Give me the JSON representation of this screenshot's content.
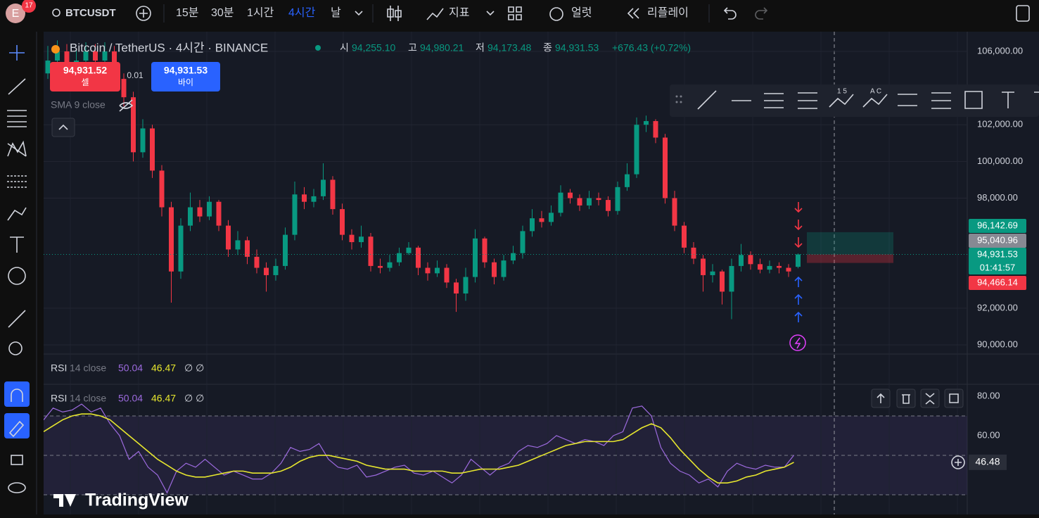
{
  "topbar": {
    "avatar": "E",
    "badge": "17",
    "symbol": "BTCUSDT",
    "intervals": [
      "15분",
      "30분",
      "1시간",
      "4시간",
      "날"
    ],
    "active_interval": 3,
    "indicators": "지표",
    "alert": "얼럿",
    "replay": "리플레이"
  },
  "legend": {
    "title": "Bitcoin / TetherUS · 4시간 · BINANCE",
    "o_label": "시",
    "o": "94,255.10",
    "h_label": "고",
    "h": "94,980.21",
    "l_label": "저",
    "l": "94,173.48",
    "c_label": "종",
    "c": "94,931.53",
    "change": "+676.43 (+0.72%)"
  },
  "trade": {
    "sell_price": "94,931.52",
    "sell": "셀",
    "qty": "0.01",
    "buy_price": "94,931.53",
    "buy": "바이"
  },
  "sma_label": "SMA 9 close",
  "drawing_toolbar": {
    "fib_label": "1 5",
    "pattern_label": "A C"
  },
  "rsi_legend": {
    "name": "RSI",
    "params": "14 close",
    "rsi": "50.04",
    "ma": "46.47",
    "extra": "∅ ∅"
  },
  "logo": "TradingView",
  "chart_data": [
    {
      "type": "candlestick",
      "up_color": "#089981",
      "down_color": "#f23645",
      "ylim": [
        89500,
        107075
      ],
      "yticks": [
        {
          "value": 106000,
          "label": "106,000.00"
        },
        {
          "value": 102000,
          "label": "102,000.00"
        },
        {
          "value": 100000,
          "label": "100,000.00"
        },
        {
          "value": 98000,
          "label": "98,000.00"
        },
        {
          "value": 92000,
          "label": "92,000.00"
        },
        {
          "value": 90000,
          "label": "90,000.00"
        }
      ],
      "open": [
        104800,
        105500,
        106000,
        105000,
        105500,
        106000,
        105500,
        106000,
        104500,
        103500,
        100500,
        101800,
        99500,
        97500,
        94000,
        96500,
        97500,
        97000,
        97800,
        96500,
        95200,
        95700,
        94800,
        94200,
        93800,
        94300,
        96000,
        98200,
        97800,
        98100,
        99000,
        97400,
        96000,
        95600,
        95900,
        94300,
        94200,
        94500,
        95000,
        95300,
        94200,
        93900,
        94200,
        93400,
        92800,
        93700,
        95800,
        94500,
        93700,
        94600,
        95000,
        96200,
        96900,
        96700,
        97200,
        98300,
        98000,
        97600,
        98000,
        97900,
        97300,
        98600,
        99300,
        102000,
        102200,
        101300,
        98000,
        96500,
        95300,
        94700,
        93800,
        94000,
        92900,
        94300,
        94900,
        94400,
        94100,
        94300,
        94200,
        94255.1
      ],
      "high": [
        106300,
        106600,
        106400,
        106100,
        106500,
        106400,
        106500,
        106300,
        104800,
        103800,
        102300,
        102000,
        99800,
        97800,
        96900,
        98300,
        97900,
        98100,
        97900,
        96800,
        96200,
        95900,
        95200,
        94500,
        94700,
        96400,
        98900,
        98600,
        98500,
        99900,
        99200,
        97700,
        96300,
        96500,
        96100,
        94700,
        94900,
        95300,
        95600,
        95400,
        94500,
        94600,
        94400,
        93600,
        94200,
        96300,
        95900,
        94700,
        94900,
        95400,
        96500,
        97400,
        97300,
        97600,
        98700,
        98500,
        98200,
        98400,
        98300,
        98100,
        98900,
        99900,
        102400,
        102500,
        102300,
        101500,
        98400,
        96700,
        95600,
        94900,
        94400,
        94100,
        94700,
        95500,
        95100,
        94700,
        94600,
        94500,
        94400,
        94980.21
      ],
      "low": [
        104500,
        105200,
        104700,
        104800,
        105200,
        105100,
        105200,
        104100,
        103000,
        100000,
        100200,
        99100,
        97000,
        92300,
        93600,
        96200,
        96700,
        96800,
        96200,
        94800,
        94900,
        94400,
        93900,
        92900,
        93500,
        94100,
        95700,
        97400,
        97500,
        97900,
        97100,
        95700,
        95200,
        95300,
        94000,
        93900,
        94000,
        94300,
        94900,
        93800,
        93500,
        93700,
        93100,
        91800,
        92400,
        93400,
        94200,
        93300,
        93500,
        94400,
        94700,
        95900,
        96400,
        96500,
        97000,
        97700,
        97300,
        97400,
        97600,
        97000,
        97100,
        98400,
        99100,
        101600,
        101000,
        97700,
        96200,
        95000,
        94400,
        92900,
        93400,
        92200,
        91400,
        94000,
        94100,
        93900,
        93900,
        93900,
        93700,
        94173.48
      ],
      "close": [
        105500,
        106000,
        105000,
        105500,
        106000,
        105500,
        106000,
        104500,
        103500,
        100500,
        101800,
        99500,
        97500,
        94000,
        96500,
        97500,
        97000,
        97800,
        96500,
        95200,
        95700,
        94800,
        94200,
        93800,
        94300,
        96000,
        98200,
        97800,
        98100,
        99000,
        97400,
        96000,
        95600,
        95900,
        94300,
        94200,
        94500,
        95000,
        95300,
        94200,
        93900,
        94200,
        93400,
        92800,
        93700,
        95800,
        94500,
        93700,
        94600,
        95000,
        96200,
        96900,
        96700,
        97200,
        98300,
        98000,
        97600,
        98000,
        97900,
        97300,
        98600,
        99300,
        102000,
        102200,
        101300,
        98000,
        96500,
        95300,
        94700,
        93800,
        94000,
        92900,
        94300,
        94900,
        94400,
        94100,
        94300,
        94200,
        94000,
        94931.53
      ],
      "price_tags": [
        {
          "value": 96142.69,
          "label": "96,142.69",
          "color": "#089981"
        },
        {
          "value": 95040.96,
          "label": "95,040.96",
          "color": "#868993"
        },
        {
          "value": 94931.53,
          "label": "94,931.53",
          "color": "#089981"
        },
        {
          "value": 94466.14,
          "label": "94,466.14",
          "color": "#f23645"
        }
      ],
      "countdown": "01:41:57"
    },
    {
      "type": "line",
      "ylim": [
        20,
        85.7
      ],
      "yticks": [
        {
          "value": 80,
          "label": "80.00"
        },
        {
          "value": 60,
          "label": "60.00"
        }
      ],
      "levels": [
        70,
        50,
        30
      ],
      "series": [
        {
          "color": "#9c6ade",
          "values": [
            68,
            74,
            72,
            73,
            76,
            72,
            74,
            66,
            60,
            48,
            52,
            44,
            40,
            31,
            42,
            46,
            44,
            48,
            44,
            40,
            42,
            40,
            38,
            38,
            41,
            46,
            54,
            52,
            53,
            56,
            48,
            44,
            43,
            45,
            39,
            40,
            42,
            44,
            45,
            41,
            40,
            42,
            39,
            36,
            40,
            48,
            44,
            40,
            44,
            46,
            52,
            55,
            54,
            56,
            60,
            58,
            56,
            58,
            57,
            55,
            60,
            62,
            74,
            75,
            70,
            54,
            46,
            42,
            40,
            36,
            38,
            34,
            42,
            46,
            44,
            43,
            45,
            44,
            44,
            50.04
          ]
        },
        {
          "color": "#e6e62e",
          "values": [
            62,
            65,
            68,
            70,
            71,
            71,
            70,
            68,
            64,
            60,
            56,
            52,
            48,
            45,
            42,
            40,
            39,
            39,
            40,
            41,
            42,
            42,
            41,
            41,
            41,
            42,
            44,
            47,
            49,
            50,
            50,
            49,
            48,
            47,
            45,
            44,
            43,
            43,
            43,
            42,
            42,
            42,
            42,
            41,
            41,
            42,
            43,
            43,
            43,
            44,
            45,
            47,
            49,
            51,
            53,
            55,
            56,
            57,
            57,
            57,
            57,
            58,
            61,
            64,
            66,
            64,
            59,
            53,
            48,
            43,
            39,
            36,
            36,
            37,
            39,
            40,
            42,
            43,
            44,
            46.47
          ]
        }
      ],
      "tag": {
        "value": 46.48,
        "label": "46.48"
      }
    }
  ]
}
